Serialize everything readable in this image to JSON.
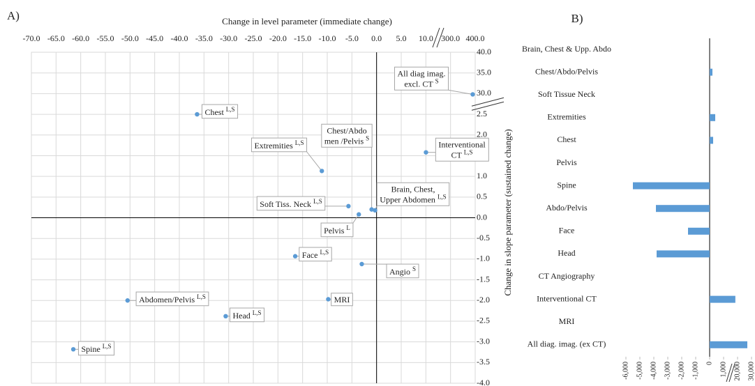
{
  "chart_data": [
    {
      "type": "scatter",
      "panel": "A)",
      "x_label": "Change in level parameter (immediate change)",
      "y_label": "Change in slope parameter (sustained change)",
      "color": "#5b9bd5",
      "grid": true,
      "x": [
        -36.4,
        -11.1,
        -1.0,
        11,
        390,
        -0.3,
        -5.7,
        -3.6,
        -16.5,
        -3.0,
        -50.5,
        -9.8,
        -30.6,
        -61.5
      ],
      "values": [
        2.5,
        1.13,
        0.2,
        1.58,
        29,
        0.18,
        0.28,
        0.08,
        -0.93,
        -1.12,
        -2.0,
        -1.97,
        -2.38,
        -3.18
      ],
      "point_labels": [
        [
          "Chest"
        ],
        [
          "Extremities"
        ],
        [
          "Chest/Abdo",
          "men /Pelvis"
        ],
        [
          "Interventional",
          "CT"
        ],
        [
          "All diag imag.",
          "excl. CT"
        ],
        [
          "Brain, Chest,",
          "Upper Abdomen"
        ],
        [
          "Soft Tiss. Neck"
        ],
        [
          "Pelvis"
        ],
        [
          "Face"
        ],
        [
          "Angio"
        ],
        [
          "Abdomen/Pelvis"
        ],
        [
          "MRI"
        ],
        [
          "Head"
        ],
        [
          "Spine"
        ]
      ],
      "point_sups": [
        "L,S",
        "L,S",
        "S",
        "L,S",
        "S",
        "L,S",
        "L,S",
        "L",
        "L,S",
        "S",
        "L,S",
        null,
        "L,S",
        "L,S"
      ],
      "xlim": [
        -70,
        400
      ],
      "ylim": [
        -4,
        40
      ],
      "xbreak": [
        10,
        300
      ],
      "ybreak": [
        2.5,
        30
      ],
      "xticks": [
        {
          "value": -70,
          "label": "-70.0"
        },
        {
          "value": -65,
          "label": "-65.0"
        },
        {
          "value": -60,
          "label": "-60.0"
        },
        {
          "value": -55,
          "label": "-55.0"
        },
        {
          "value": -50,
          "label": "-50.0"
        },
        {
          "value": -45,
          "label": "-45.0"
        },
        {
          "value": -40,
          "label": "-40.0"
        },
        {
          "value": -35,
          "label": "-35.0"
        },
        {
          "value": -30,
          "label": "-30.0"
        },
        {
          "value": -25,
          "label": "-25.0"
        },
        {
          "value": -20,
          "label": "-20.0"
        },
        {
          "value": -15,
          "label": "-15.0"
        },
        {
          "value": -10,
          "label": "-10.0"
        },
        {
          "value": -5,
          "label": "-5.0"
        },
        {
          "value": 0,
          "label": "0.0"
        },
        {
          "value": 5,
          "label": "5.0"
        },
        {
          "value": 10,
          "label": "10.0"
        },
        {
          "value": 300,
          "label": "300.0"
        },
        {
          "value": 400,
          "label": "400.0"
        }
      ],
      "yticks": [
        {
          "value": -4,
          "label": "-4.0"
        },
        -3.5,
        {
          "value": -3,
          "label": "-3.0"
        },
        -2.5,
        {
          "value": -2,
          "label": "-2.0"
        },
        -1.5,
        {
          "value": -1,
          "label": "-1.0"
        },
        -0.5,
        {
          "value": 0,
          "label": "0.0"
        },
        0.5,
        {
          "value": 1,
          "label": "1.0"
        },
        1.5,
        {
          "value": 2,
          "label": "2.0"
        },
        2.5,
        {
          "value": 30,
          "label": "30.0"
        },
        {
          "value": 35,
          "label": "35.0"
        },
        {
          "value": 40,
          "label": "40.0"
        }
      ]
    },
    {
      "type": "hbar",
      "panel": "B)",
      "color": "#5b9bd5",
      "categories": [
        "Brain, Chest & Upp. Abdo",
        "Chest/Abdo/Pelvis",
        "Soft Tissue Neck",
        "Extremities",
        "Chest",
        "Pelvis",
        "Spine",
        "Abdo/Pelvis",
        "Face",
        "Head",
        "CT Angiography",
        "Interventional CT",
        "MRI",
        "All diag. imag. (ex CT)"
      ],
      "values": [
        null,
        200,
        null,
        400,
        250,
        null,
        -5500,
        -3850,
        -1550,
        -3800,
        null,
        17000,
        null,
        27000
      ],
      "xlim": [
        -6000,
        30000
      ],
      "xbreak": [
        1000,
        20000
      ],
      "xticks": [
        {
          "value": -6000,
          "label": "-6,000"
        },
        {
          "value": -5000,
          "label": "-5,000"
        },
        {
          "value": -4000,
          "label": "-4,000"
        },
        {
          "value": -3000,
          "label": "-3,000"
        },
        {
          "value": -2000,
          "label": "-2,000"
        },
        {
          "value": -1000,
          "label": "-1,000"
        },
        0,
        {
          "value": 1000,
          "label": "1,000"
        },
        {
          "value": 20000,
          "label": "20,000"
        },
        {
          "value": 30000,
          "label": "30,000"
        }
      ]
    }
  ]
}
